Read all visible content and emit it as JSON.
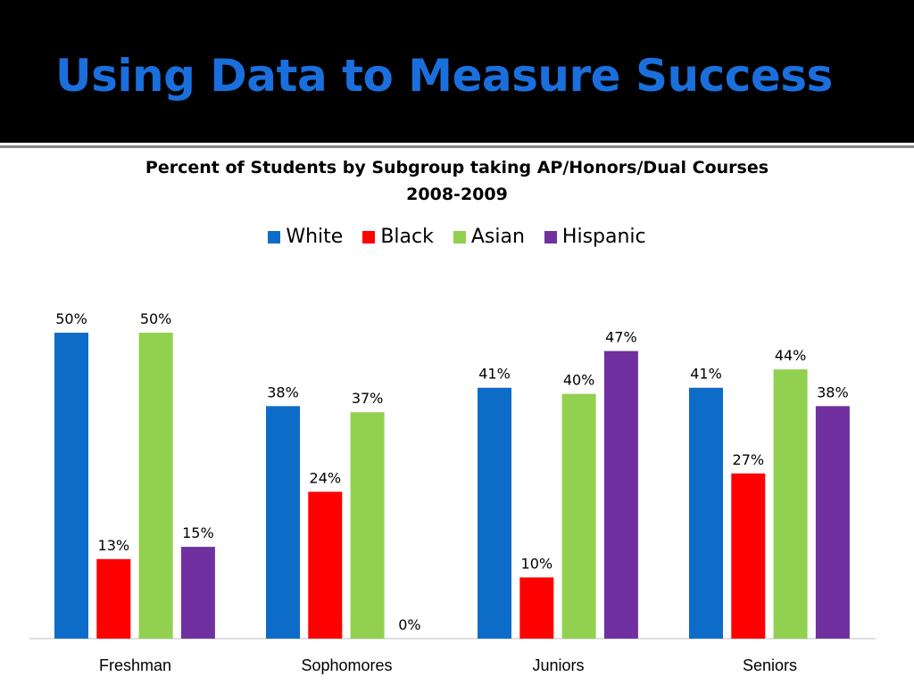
{
  "slide": {
    "title": "Using Data to Measure Success"
  },
  "colors": {
    "title": "#1a6fdc",
    "band": "#000000",
    "White": "#0d6cc8",
    "Black": "#ff0000",
    "Asian": "#92d050",
    "Hispanic": "#7030a0"
  },
  "chart_data": {
    "type": "bar",
    "title": "Percent of Students by Subgroup taking AP/Honors/Dual Courses",
    "subtitle": "2008-2009",
    "xlabel": "",
    "ylabel": "",
    "ylim": [
      0,
      50
    ],
    "legend_position": "top",
    "grid": false,
    "categories": [
      "Freshman",
      "Sophomores",
      "Juniors",
      "Seniors"
    ],
    "series": [
      {
        "name": "White",
        "values": [
          50,
          38,
          41,
          41
        ],
        "labels": [
          "50%",
          "38%",
          "41%",
          "41%"
        ]
      },
      {
        "name": "Black",
        "values": [
          13,
          24,
          10,
          27
        ],
        "labels": [
          "13%",
          "24%",
          "10%",
          "27%"
        ]
      },
      {
        "name": "Asian",
        "values": [
          50,
          37,
          40,
          44
        ],
        "labels": [
          "50%",
          "37%",
          "40%",
          "44%"
        ]
      },
      {
        "name": "Hispanic",
        "values": [
          15,
          0,
          47,
          38
        ],
        "labels": [
          "15%",
          "0%",
          "47%",
          "38%"
        ]
      }
    ]
  }
}
